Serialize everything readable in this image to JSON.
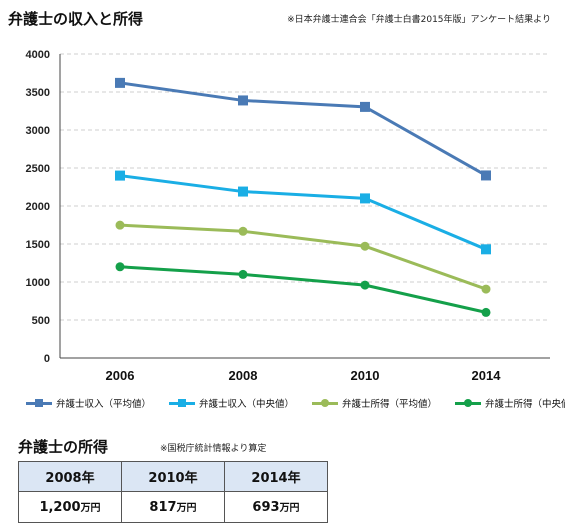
{
  "title": "弁護士の収入と所得",
  "source_note": "※日本弁護士連合会「弁護士白書2015年版」アンケート結果より",
  "chart_data": {
    "type": "line",
    "title": "弁護士の収入と所得",
    "x": [
      "2006",
      "2008",
      "2010",
      "2014"
    ],
    "ylim": [
      0,
      4000
    ],
    "yticks": [
      0,
      500,
      1000,
      1500,
      2000,
      2500,
      3000,
      3500,
      4000
    ],
    "ytick_labels": [
      "0",
      "500",
      "1000",
      "1500",
      "2000",
      "2500",
      "3000",
      "3500",
      "4000"
    ],
    "grid": true,
    "legend_position": "bottom",
    "series": [
      {
        "name": "弁護士収入（平均値）",
        "values": [
          3620,
          3389,
          3304,
          2402
        ],
        "color": "#4a7ab5",
        "marker": "square"
      },
      {
        "name": "弁護士収入（中央値）",
        "values": [
          2400,
          2190,
          2100,
          1430
        ],
        "color": "#1aaee5",
        "marker": "square"
      },
      {
        "name": "弁護士所得（平均値）",
        "values": [
          1748,
          1667,
          1471,
          907
        ],
        "color": "#9bbb59",
        "marker": "circle"
      },
      {
        "name": "弁護士所得（中央値）",
        "values": [
          1200,
          1100,
          959,
          600
        ],
        "color": "#14a04a",
        "marker": "circle"
      }
    ]
  },
  "income_section": {
    "title": "弁護士の所得",
    "note": "※国税庁統計情報より算定",
    "headers": [
      "2008年",
      "2010年",
      "2014年"
    ],
    "values": [
      "1,200",
      "817",
      "693"
    ],
    "unit": "万円"
  }
}
